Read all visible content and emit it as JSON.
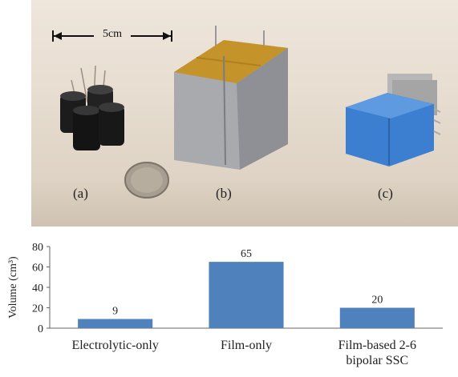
{
  "photo": {
    "scale_bar_label": "5cm",
    "labels": [
      "(a)",
      "(b)",
      "(c)"
    ]
  },
  "chart_data": {
    "type": "bar",
    "categories": [
      "Electrolytic-only",
      "Film-only",
      "Film-based 2-6 bipolar SSC"
    ],
    "category_lines": [
      [
        "Electrolytic-only"
      ],
      [
        "Film-only"
      ],
      [
        "Film-based 2-6",
        "bipolar SSC"
      ]
    ],
    "values": [
      9,
      65,
      20
    ],
    "data_labels": [
      "9",
      "65",
      "20"
    ],
    "ylabel": "Volume (cm³)",
    "ylim": [
      0,
      80
    ],
    "yticks": [
      0,
      20,
      40,
      60,
      80
    ],
    "bar_color": "#4f81bd",
    "grid": false
  }
}
